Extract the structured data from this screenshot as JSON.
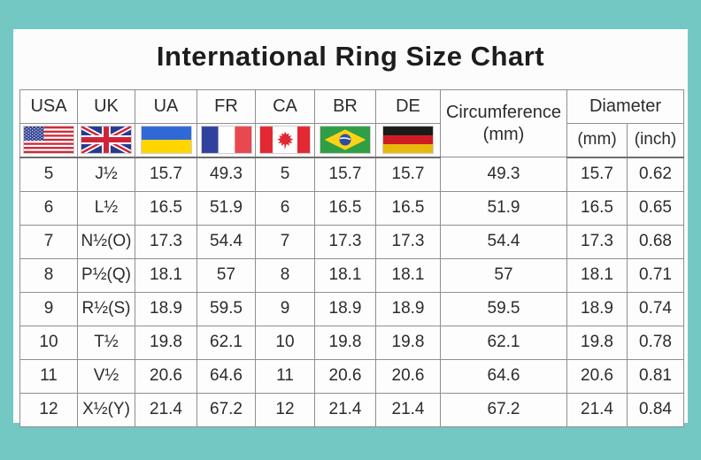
{
  "title": "International Ring Size Chart",
  "colors": {
    "background_teal": "#74c8c3",
    "panel_white": "#fcfcfc",
    "grid_line": "#8f8f8f",
    "text": "#2c2c2c"
  },
  "header": {
    "countries": [
      {
        "code": "USA",
        "flag": "usa-flag-icon"
      },
      {
        "code": "UK",
        "flag": "uk-flag-icon"
      },
      {
        "code": "UA",
        "flag": "ukraine-flag-icon"
      },
      {
        "code": "FR",
        "flag": "france-flag-icon"
      },
      {
        "code": "CA",
        "flag": "canada-flag-icon"
      },
      {
        "code": "BR",
        "flag": "brazil-flag-icon"
      },
      {
        "code": "DE",
        "flag": "germany-flag-icon"
      }
    ],
    "circumference": {
      "line1": "Circumference",
      "line2": "(mm)"
    },
    "diameter": {
      "label": "Diameter",
      "sub": [
        "(mm)",
        "(inch)"
      ]
    }
  },
  "chart_data": {
    "type": "table",
    "title": "International Ring Size Chart",
    "columns": [
      "USA",
      "UK",
      "UA",
      "FR",
      "CA",
      "BR",
      "DE",
      "Circumference (mm)",
      "Diameter (mm)",
      "Diameter (inch)"
    ],
    "rows": [
      [
        "5",
        "J½",
        "15.7",
        "49.3",
        "5",
        "15.7",
        "15.7",
        "49.3",
        "15.7",
        "0.62"
      ],
      [
        "6",
        "L½",
        "16.5",
        "51.9",
        "6",
        "16.5",
        "16.5",
        "51.9",
        "16.5",
        "0.65"
      ],
      [
        "7",
        "N½(O)",
        "17.3",
        "54.4",
        "7",
        "17.3",
        "17.3",
        "54.4",
        "17.3",
        "0.68"
      ],
      [
        "8",
        "P½(Q)",
        "18.1",
        "57",
        "8",
        "18.1",
        "18.1",
        "57",
        "18.1",
        "0.71"
      ],
      [
        "9",
        "R½(S)",
        "18.9",
        "59.5",
        "9",
        "18.9",
        "18.9",
        "59.5",
        "18.9",
        "0.74"
      ],
      [
        "10",
        "T½",
        "19.8",
        "62.1",
        "10",
        "19.8",
        "19.8",
        "62.1",
        "19.8",
        "0.78"
      ],
      [
        "11",
        "V½",
        "20.6",
        "64.6",
        "11",
        "20.6",
        "20.6",
        "64.6",
        "20.6",
        "0.81"
      ],
      [
        "12",
        "X½(Y)",
        "21.4",
        "67.2",
        "12",
        "21.4",
        "21.4",
        "67.2",
        "21.4",
        "0.84"
      ]
    ]
  }
}
